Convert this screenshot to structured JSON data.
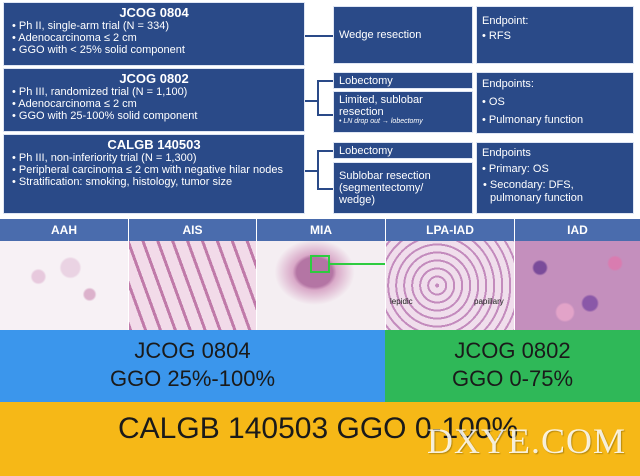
{
  "trials": [
    {
      "title": "JCOG 0804",
      "bullets": [
        "• Ph II, single-arm trial (N = 334)",
        "• Adenocarcinoma ≤ 2 cm",
        "• GGO with < 25% solid component"
      ],
      "arms": [
        "Wedge resection"
      ],
      "endpoint_title": "Endpoint:",
      "endpoints": [
        "•   RFS"
      ]
    },
    {
      "title": "JCOG 0802",
      "bullets": [
        "• Ph III, randomized trial (N = 1,100)",
        "• Adenocarcinoma ≤ 2 cm",
        "•  GGO with 25-100% solid component"
      ],
      "arms": [
        "Lobectomy",
        "Limited, sublobar resection"
      ],
      "arm_note": "• LN drop out → lobectomy",
      "endpoint_title": "Endpoints:",
      "endpoints": [
        "• OS",
        "• Pulmonary function"
      ]
    },
    {
      "title": "CALGB 140503",
      "bullets": [
        "• Ph III, non-inferiority trial (N = 1,300)",
        "• Peripheral carcinoma ≤ 2 cm with negative hilar nodes",
        "• Stratification: smoking, histology, tumor size"
      ],
      "arms": [
        "Lobectomy",
        "Sublobar resection (segmentectomy/ wedge)"
      ],
      "endpoint_title": "Endpoints",
      "endpoints": [
        "• Primary: OS",
        "• Secondary: DFS, pulmonary function"
      ]
    }
  ],
  "histology": {
    "panels": [
      "AAH",
      "AIS",
      "MIA",
      "LPA-IAD",
      "IAD"
    ],
    "lpa_labels": [
      "lepidic",
      "papillary"
    ]
  },
  "bands": {
    "blue_line1": "JCOG 0804",
    "blue_line2": "GGO 25%-100%",
    "green_line1": "JCOG 0802",
    "green_line2": "GGO 0-75%",
    "orange": "CALGB 140503 GGO 0-100%"
  },
  "watermark": "DXYE.COM",
  "colors": {
    "box_blue": "#2a4a88",
    "band_blue": "#3b96ec",
    "band_green": "#2fb858",
    "band_orange": "#f6b817"
  }
}
